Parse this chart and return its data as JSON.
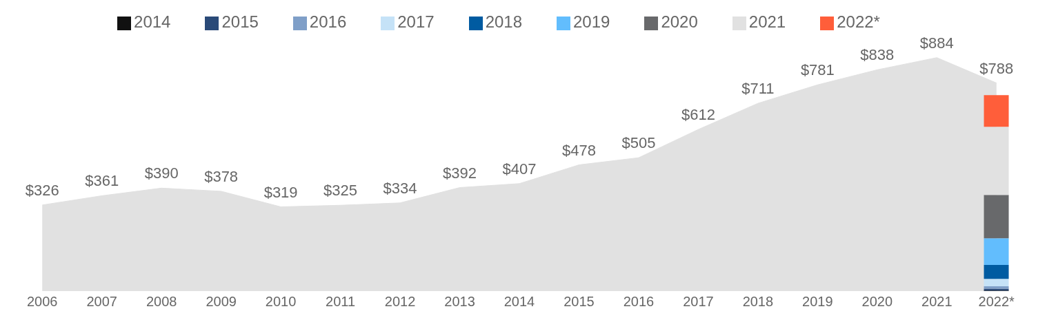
{
  "chart_data": {
    "type": "bar",
    "stacked": true,
    "legend": "top",
    "grid": false,
    "categories": [
      "2006",
      "2007",
      "2008",
      "2009",
      "2010",
      "2011",
      "2012",
      "2013",
      "2014",
      "2015",
      "2016",
      "2017",
      "2018",
      "2019",
      "2020",
      "2021",
      "2022*"
    ],
    "series": [
      {
        "type": "area",
        "color": "#e1e1e1",
        "values": [
          326,
          361,
          390,
          378,
          319,
          325,
          334,
          392,
          407,
          478,
          505,
          612,
          711,
          781,
          838,
          884,
          788
        ],
        "value_labels": [
          "$326",
          "$361",
          "$390",
          "$378",
          "$319",
          "$325",
          "$334",
          "$392",
          "$407",
          "$478",
          "$505",
          "$612",
          "$711",
          "$781",
          "$838",
          "$884",
          "$788"
        ]
      },
      {
        "name": "2014",
        "color": "#111111",
        "values": [
          null,
          null,
          null,
          null,
          null,
          null,
          null,
          null,
          null,
          null,
          null,
          null,
          null,
          null,
          null,
          null,
          2
        ]
      },
      {
        "name": "2015",
        "color": "#2a4a78",
        "values": [
          null,
          null,
          null,
          null,
          null,
          null,
          null,
          null,
          null,
          null,
          null,
          null,
          null,
          null,
          null,
          null,
          7
        ]
      },
      {
        "name": "2016",
        "color": "#7f9fc8",
        "values": [
          null,
          null,
          null,
          null,
          null,
          null,
          null,
          null,
          null,
          null,
          null,
          null,
          null,
          null,
          null,
          null,
          9
        ]
      },
      {
        "name": "2017",
        "color": "#c5e2f7",
        "values": [
          null,
          null,
          null,
          null,
          null,
          null,
          null,
          null,
          null,
          null,
          null,
          null,
          null,
          null,
          null,
          null,
          28
        ]
      },
      {
        "name": "2018",
        "color": "#005ba1",
        "values": [
          null,
          null,
          null,
          null,
          null,
          null,
          null,
          null,
          null,
          null,
          null,
          null,
          null,
          null,
          null,
          null,
          53
        ]
      },
      {
        "name": "2019",
        "color": "#62bdfd",
        "values": [
          null,
          null,
          null,
          null,
          null,
          null,
          null,
          null,
          null,
          null,
          null,
          null,
          null,
          null,
          null,
          null,
          101
        ]
      },
      {
        "name": "2020",
        "color": "#68696b",
        "values": [
          null,
          null,
          null,
          null,
          null,
          null,
          null,
          null,
          null,
          null,
          null,
          null,
          null,
          null,
          null,
          null,
          164
        ]
      },
      {
        "name": "2021",
        "color": "#e1e1e1",
        "values": [
          null,
          null,
          null,
          null,
          null,
          null,
          null,
          null,
          null,
          null,
          null,
          null,
          null,
          null,
          null,
          null,
          258
        ]
      },
      {
        "name": "2022*",
        "color": "#ff5e3a",
        "values": [
          null,
          null,
          null,
          null,
          null,
          null,
          null,
          null,
          null,
          null,
          null,
          null,
          null,
          null,
          null,
          null,
          120
        ]
      }
    ]
  }
}
